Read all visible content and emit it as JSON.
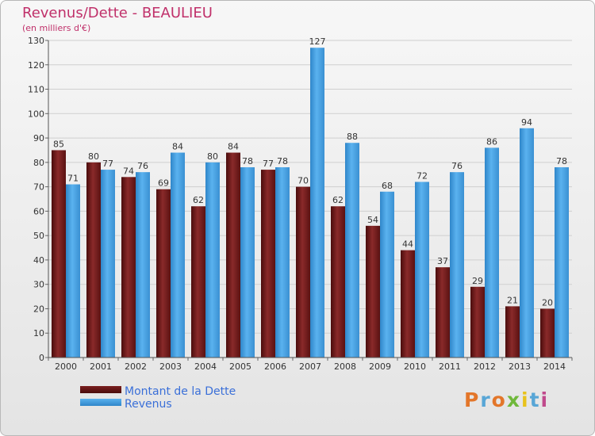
{
  "header": {
    "title": "Revenus/Dette - BEAULIEU",
    "subtitle": "(en milliers d'€)"
  },
  "legend": {
    "debt_label": "Montant de la Dette",
    "revenue_label": "Revenus"
  },
  "logo": {
    "text": "Proxiti",
    "colors": [
      "#e3762a",
      "#58a6d6",
      "#e3762a",
      "#6fb83b",
      "#e8c21c",
      "#58a6d6",
      "#c04a8c"
    ]
  },
  "colors": {
    "debt": "#6a1a1a",
    "revenue": "#4ea3e3",
    "text": "#333333"
  },
  "chart_data": {
    "type": "bar",
    "categories": [
      "2000",
      "2001",
      "2002",
      "2003",
      "2004",
      "2005",
      "2006",
      "2007",
      "2008",
      "2009",
      "2010",
      "2011",
      "2012",
      "2013",
      "2014"
    ],
    "series": [
      {
        "name": "Montant de la Dette",
        "values": [
          85,
          80,
          74,
          69,
          62,
          84,
          77,
          70,
          62,
          54,
          44,
          37,
          29,
          21,
          20
        ]
      },
      {
        "name": "Revenus",
        "values": [
          71,
          77,
          76,
          84,
          80,
          78,
          78,
          127,
          88,
          68,
          72,
          76,
          86,
          94,
          78
        ]
      }
    ],
    "title": "Revenus/Dette - BEAULIEU",
    "subtitle": "(en milliers d'€)",
    "ylim": [
      0,
      130
    ],
    "yticks": [
      0,
      10,
      20,
      30,
      40,
      50,
      60,
      70,
      80,
      90,
      100,
      110,
      120,
      130
    ],
    "grid": true,
    "legend_position": "bottom-left",
    "data_labels": true
  }
}
